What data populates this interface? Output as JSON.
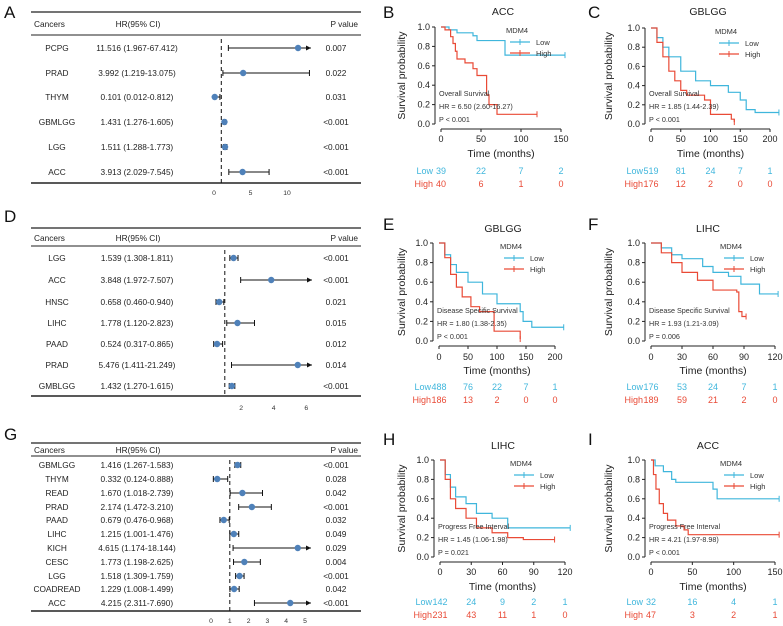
{
  "colors": {
    "low": "#3fb6dc",
    "high": "#e94a36",
    "point": "#4f81b9",
    "line": "#111111"
  },
  "chart_data": [
    {
      "panel": "A",
      "type": "forest",
      "headers": [
        "Cancers",
        "HR(95% CI)",
        "P value"
      ],
      "reference_line": 1,
      "xticks": [
        0,
        5,
        10
      ],
      "rows": [
        {
          "cancer": "PCPG",
          "hr_text": "11.516 (1.967-67.412)",
          "hr": 11.516,
          "lo": 1.967,
          "hi": 67.412,
          "p": "0.007"
        },
        {
          "cancer": "PRAD",
          "hr_text": "3.992 (1.219-13.075)",
          "hr": 3.992,
          "lo": 1.219,
          "hi": 13.075,
          "p": "0.022"
        },
        {
          "cancer": "THYM",
          "hr_text": "0.101 (0.012-0.812)",
          "hr": 0.101,
          "lo": 0.012,
          "hi": 0.812,
          "p": "0.031"
        },
        {
          "cancer": "GBMLGG",
          "hr_text": "1.431 (1.276-1.605)",
          "hr": 1.431,
          "lo": 1.276,
          "hi": 1.605,
          "p": "<0.001"
        },
        {
          "cancer": "LGG",
          "hr_text": "1.511 (1.288-1.773)",
          "hr": 1.511,
          "lo": 1.288,
          "hi": 1.773,
          "p": "<0.001"
        },
        {
          "cancer": "ACC",
          "hr_text": "3.913 (2.029-7.545)",
          "hr": 3.913,
          "lo": 2.029,
          "hi": 7.545,
          "p": "<0.001"
        }
      ]
    },
    {
      "panel": "B",
      "type": "line",
      "title": "ACC",
      "xlabel": "Time (months)",
      "ylabel": "Survival probability",
      "legend_title": "MDM4",
      "legend": [
        "Low",
        "High"
      ],
      "xticks": [
        0,
        50,
        100,
        150
      ],
      "yticks": [
        0,
        0.2,
        0.4,
        0.6,
        0.8,
        1.0
      ],
      "annotation": [
        "Overall Survival",
        "HR = 6.50 (2.60-16.27)",
        "P < 0.001"
      ],
      "risk": {
        "Low": [
          39,
          22,
          7,
          2
        ],
        "High": [
          40,
          6,
          1,
          0
        ]
      },
      "series": [
        {
          "name": "Low",
          "points": [
            [
              0,
              1
            ],
            [
              10,
              0.97
            ],
            [
              20,
              0.94
            ],
            [
              40,
              0.91
            ],
            [
              45,
              0.86
            ],
            [
              80,
              0.86
            ],
            [
              80,
              0.71
            ],
            [
              155,
              0.71
            ]
          ]
        },
        {
          "name": "High",
          "points": [
            [
              0,
              1
            ],
            [
              5,
              0.97
            ],
            [
              12,
              0.9
            ],
            [
              15,
              0.83
            ],
            [
              18,
              0.75
            ],
            [
              20,
              0.67
            ],
            [
              30,
              0.63
            ],
            [
              40,
              0.57
            ],
            [
              45,
              0.5
            ],
            [
              55,
              0.5
            ],
            [
              57,
              0.3
            ],
            [
              60,
              0.2
            ],
            [
              70,
              0.1
            ],
            [
              120,
              0.1
            ]
          ]
        }
      ]
    },
    {
      "panel": "C",
      "type": "line",
      "title": "GBLGG",
      "xlabel": "Time (months)",
      "ylabel": "Survival probability",
      "legend_title": "MDM4",
      "legend": [
        "Low",
        "High"
      ],
      "xticks": [
        0,
        50,
        100,
        150,
        200
      ],
      "yticks": [
        0,
        0.2,
        0.4,
        0.6,
        0.8,
        1.0
      ],
      "annotation": [
        "Overall Survival",
        "HR = 1.85 (1.44-2.39)",
        "P < 0.001"
      ],
      "risk": {
        "Low": [
          519,
          81,
          24,
          7,
          1
        ],
        "High": [
          176,
          12,
          2,
          0,
          0
        ]
      },
      "series": [
        {
          "name": "Low",
          "points": [
            [
              0,
              1
            ],
            [
              10,
              0.9
            ],
            [
              20,
              0.8
            ],
            [
              30,
              0.7
            ],
            [
              50,
              0.55
            ],
            [
              75,
              0.45
            ],
            [
              100,
              0.4
            ],
            [
              130,
              0.33
            ],
            [
              150,
              0.25
            ],
            [
              160,
              0.15
            ],
            [
              175,
              0.12
            ],
            [
              215,
              0.12
            ]
          ]
        },
        {
          "name": "High",
          "points": [
            [
              0,
              1
            ],
            [
              10,
              0.85
            ],
            [
              20,
              0.7
            ],
            [
              30,
              0.55
            ],
            [
              40,
              0.45
            ],
            [
              50,
              0.35
            ],
            [
              60,
              0.3
            ],
            [
              90,
              0.25
            ],
            [
              100,
              0.1
            ],
            [
              135,
              0.05
            ],
            [
              140,
              0.02
            ]
          ]
        }
      ]
    },
    {
      "panel": "D",
      "type": "forest",
      "headers": [
        "Cancers",
        "HR(95% CI)",
        "P value"
      ],
      "reference_line": 1,
      "xticks": [
        2,
        4,
        6
      ],
      "rows": [
        {
          "cancer": "LGG",
          "hr_text": "1.539 (1.308-1.811)",
          "hr": 1.539,
          "lo": 1.308,
          "hi": 1.811,
          "p": "<0.001"
        },
        {
          "cancer": "ACC",
          "hr_text": "3.848 (1.972-7.507)",
          "hr": 3.848,
          "lo": 1.972,
          "hi": 7.507,
          "p": "<0.001"
        },
        {
          "cancer": "HNSC",
          "hr_text": "0.658 (0.460-0.940)",
          "hr": 0.658,
          "lo": 0.46,
          "hi": 0.94,
          "p": "0.021"
        },
        {
          "cancer": "LIHC",
          "hr_text": "1.778 (1.120-2.823)",
          "hr": 1.778,
          "lo": 1.12,
          "hi": 2.823,
          "p": "0.015"
        },
        {
          "cancer": "PAAD",
          "hr_text": "0.524 (0.317-0.865)",
          "hr": 0.524,
          "lo": 0.317,
          "hi": 0.865,
          "p": "0.012"
        },
        {
          "cancer": "PRAD",
          "hr_text": "5.476 (1.411-21.249)",
          "hr": 5.476,
          "lo": 1.411,
          "hi": 21.249,
          "p": "0.014"
        },
        {
          "cancer": "GMBLGG",
          "hr_text": "1.432 (1.270-1.615)",
          "hr": 1.432,
          "lo": 1.27,
          "hi": 1.615,
          "p": "<0.001"
        }
      ]
    },
    {
      "panel": "E",
      "type": "line",
      "title": "GBLGG",
      "xlabel": "Time (months)",
      "ylabel": "Survival probability",
      "legend_title": "MDM4",
      "legend": [
        "Low",
        "High"
      ],
      "xticks": [
        0,
        50,
        100,
        150,
        200
      ],
      "yticks": [
        0,
        0.2,
        0.4,
        0.6,
        0.8,
        1.0
      ],
      "annotation": [
        "Disease Specific Survival",
        "HR = 1.80 (1.38-2.35)",
        "P < 0.001"
      ],
      "risk": {
        "Low": [
          488,
          76,
          22,
          7,
          1
        ],
        "High": [
          186,
          13,
          2,
          0,
          0
        ]
      },
      "series": [
        {
          "name": "Low",
          "points": [
            [
              0,
              1
            ],
            [
              10,
              0.88
            ],
            [
              20,
              0.78
            ],
            [
              30,
              0.7
            ],
            [
              50,
              0.6
            ],
            [
              75,
              0.48
            ],
            [
              100,
              0.38
            ],
            [
              140,
              0.3
            ],
            [
              145,
              0.2
            ],
            [
              160,
              0.14
            ],
            [
              215,
              0.14
            ]
          ]
        },
        {
          "name": "High",
          "points": [
            [
              0,
              1
            ],
            [
              10,
              0.85
            ],
            [
              20,
              0.68
            ],
            [
              30,
              0.55
            ],
            [
              40,
              0.45
            ],
            [
              55,
              0.35
            ],
            [
              70,
              0.3
            ],
            [
              95,
              0.3
            ],
            [
              95,
              0.1
            ],
            [
              135,
              0.1
            ],
            [
              140,
              0.02
            ]
          ]
        }
      ]
    },
    {
      "panel": "F",
      "type": "line",
      "title": "LIHC",
      "xlabel": "Time (months)",
      "ylabel": "Survival probability",
      "legend_title": "MDM4",
      "legend": [
        "Low",
        "High"
      ],
      "xticks": [
        0,
        30,
        60,
        90,
        120
      ],
      "yticks": [
        0,
        0.2,
        0.4,
        0.6,
        0.8,
        1.0
      ],
      "annotation": [
        "Disease Specific Survival",
        "HR = 1.93 (1.21-3.09)",
        "P = 0.006"
      ],
      "risk": {
        "Low": [
          176,
          53,
          24,
          7,
          1
        ],
        "High": [
          189,
          59,
          21,
          2,
          0
        ]
      },
      "series": [
        {
          "name": "Low",
          "points": [
            [
              0,
              1
            ],
            [
              10,
              0.95
            ],
            [
              20,
              0.88
            ],
            [
              30,
              0.84
            ],
            [
              50,
              0.76
            ],
            [
              60,
              0.7
            ],
            [
              75,
              0.66
            ],
            [
              85,
              0.66
            ],
            [
              87,
              0.58
            ],
            [
              105,
              0.58
            ],
            [
              105,
              0.48
            ],
            [
              123,
              0.48
            ]
          ]
        },
        {
          "name": "High",
          "points": [
            [
              0,
              1
            ],
            [
              10,
              0.9
            ],
            [
              20,
              0.8
            ],
            [
              30,
              0.7
            ],
            [
              45,
              0.62
            ],
            [
              60,
              0.52
            ],
            [
              83,
              0.5
            ],
            [
              85,
              0.3
            ],
            [
              88,
              0.25
            ],
            [
              92,
              0.25
            ]
          ]
        }
      ]
    },
    {
      "panel": "G",
      "type": "forest",
      "headers": [
        "Cancers",
        "HR(95% CI)",
        "P value"
      ],
      "reference_line": 1,
      "xticks": [
        0,
        1,
        2,
        3,
        4,
        5
      ],
      "rows": [
        {
          "cancer": "GBMLGG",
          "hr_text": "1.416 (1.267-1.583)",
          "hr": 1.416,
          "lo": 1.267,
          "hi": 1.583,
          "p": "<0.001"
        },
        {
          "cancer": "THYM",
          "hr_text": "0.332 (0.124-0.888)",
          "hr": 0.332,
          "lo": 0.124,
          "hi": 0.888,
          "p": "0.028"
        },
        {
          "cancer": "READ",
          "hr_text": "1.670 (1.018-2.739)",
          "hr": 1.67,
          "lo": 1.018,
          "hi": 2.739,
          "p": "0.042"
        },
        {
          "cancer": "PRAD",
          "hr_text": "2.174 (1.472-3.210)",
          "hr": 2.174,
          "lo": 1.472,
          "hi": 3.21,
          "p": "<0.001"
        },
        {
          "cancer": "PAAD",
          "hr_text": "0.679 (0.476-0.968)",
          "hr": 0.679,
          "lo": 0.476,
          "hi": 0.968,
          "p": "0.032"
        },
        {
          "cancer": "LIHC",
          "hr_text": "1.215 (1.001-1.476)",
          "hr": 1.215,
          "lo": 1.001,
          "hi": 1.476,
          "p": "0.049"
        },
        {
          "cancer": "KICH",
          "hr_text": "4.615 (1.174-18.144)",
          "hr": 4.615,
          "lo": 1.174,
          "hi": 18.144,
          "p": "0.029"
        },
        {
          "cancer": "CESC",
          "hr_text": "1.773 (1.198-2.625)",
          "hr": 1.773,
          "lo": 1.198,
          "hi": 2.625,
          "p": "0.004"
        },
        {
          "cancer": "LGG",
          "hr_text": "1.518 (1.309-1.759)",
          "hr": 1.518,
          "lo": 1.309,
          "hi": 1.759,
          "p": "<0.001"
        },
        {
          "cancer": "COADREAD",
          "hr_text": "1.229 (1.008-1.499)",
          "hr": 1.229,
          "lo": 1.008,
          "hi": 1.499,
          "p": "0.042"
        },
        {
          "cancer": "ACC",
          "hr_text": "4.215 (2.311-7.690)",
          "hr": 4.215,
          "lo": 2.311,
          "hi": 7.69,
          "p": "<0.001"
        }
      ]
    },
    {
      "panel": "H",
      "type": "line",
      "title": "LIHC",
      "xlabel": "Time (months)",
      "ylabel": "Survival probability",
      "legend_title": "MDM4",
      "legend": [
        "Low",
        "High"
      ],
      "xticks": [
        0,
        30,
        60,
        90,
        120
      ],
      "yticks": [
        0,
        0.2,
        0.4,
        0.6,
        0.8,
        1.0
      ],
      "annotation": [
        "Progress Free Interval",
        "HR = 1.45 (1.06-1.98)",
        "P = 0.021"
      ],
      "risk": {
        "Low": [
          142,
          24,
          9,
          2,
          1
        ],
        "High": [
          231,
          43,
          11,
          1,
          0
        ]
      },
      "series": [
        {
          "name": "Low",
          "points": [
            [
              0,
              1
            ],
            [
              5,
              0.85
            ],
            [
              10,
              0.72
            ],
            [
              15,
              0.62
            ],
            [
              25,
              0.55
            ],
            [
              35,
              0.45
            ],
            [
              50,
              0.4
            ],
            [
              65,
              0.3
            ],
            [
              125,
              0.3
            ]
          ]
        },
        {
          "name": "High",
          "points": [
            [
              0,
              1
            ],
            [
              5,
              0.8
            ],
            [
              10,
              0.6
            ],
            [
              15,
              0.5
            ],
            [
              25,
              0.4
            ],
            [
              35,
              0.3
            ],
            [
              50,
              0.25
            ],
            [
              65,
              0.2
            ],
            [
              80,
              0.18
            ],
            [
              110,
              0.18
            ]
          ]
        }
      ]
    },
    {
      "panel": "I",
      "type": "line",
      "title": "ACC",
      "xlabel": "Time (months)",
      "ylabel": "Survival probability",
      "legend_title": "MDM4",
      "legend": [
        "Low",
        "High"
      ],
      "xticks": [
        0,
        50,
        100,
        150
      ],
      "yticks": [
        0,
        0.2,
        0.4,
        0.6,
        0.8,
        1.0
      ],
      "annotation": [
        "Progress Free Interval",
        "HR = 4.21 (1.97-8.98)",
        "P < 0.001"
      ],
      "risk": {
        "Low": [
          32,
          16,
          4,
          1
        ],
        "High": [
          47,
          3,
          2,
          1
        ]
      },
      "series": [
        {
          "name": "Low",
          "points": [
            [
              0,
              1
            ],
            [
              5,
              0.94
            ],
            [
              15,
              0.88
            ],
            [
              25,
              0.8
            ],
            [
              30,
              0.77
            ],
            [
              70,
              0.77
            ],
            [
              75,
              0.7
            ],
            [
              80,
              0.6
            ],
            [
              155,
              0.6
            ]
          ]
        },
        {
          "name": "High",
          "points": [
            [
              0,
              1
            ],
            [
              3,
              0.85
            ],
            [
              6,
              0.7
            ],
            [
              10,
              0.55
            ],
            [
              15,
              0.45
            ],
            [
              20,
              0.38
            ],
            [
              30,
              0.32
            ],
            [
              40,
              0.28
            ],
            [
              45,
              0.23
            ],
            [
              155,
              0.23
            ]
          ]
        }
      ]
    }
  ]
}
